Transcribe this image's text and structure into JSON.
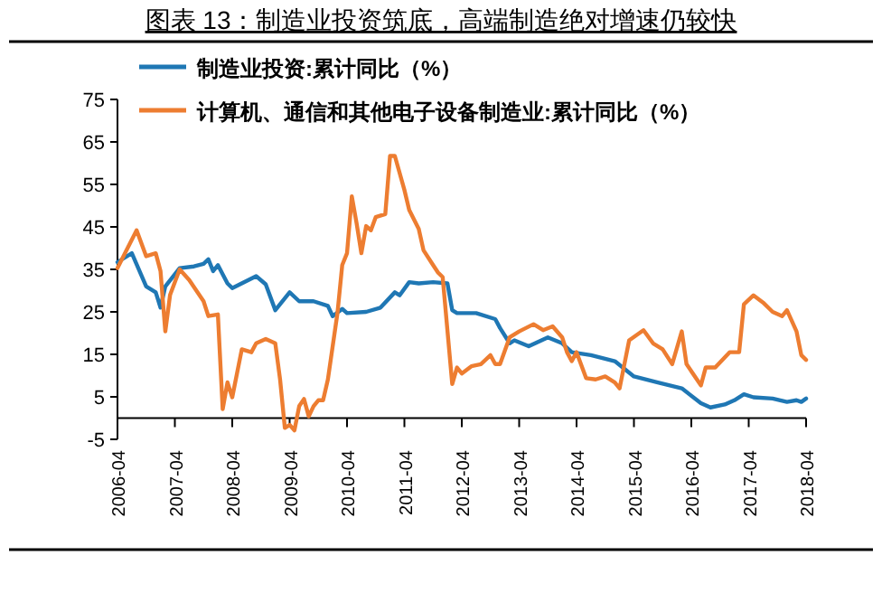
{
  "chart_data": {
    "type": "line",
    "title": "图表 13：制造业投资筑底，高端制造绝对增速仍较快",
    "legend": "top",
    "marker": "none",
    "line_style": "solid",
    "grid": false,
    "xlim": [
      "2006-04",
      "2018-04"
    ],
    "xticks": [
      "2006-04",
      "2007-04",
      "2008-04",
      "2009-04",
      "2010-04",
      "2011-04",
      "2012-04",
      "2013-04",
      "2014-04",
      "2015-04",
      "2016-04",
      "2017-04",
      "2018-04"
    ],
    "ylim": [
      -5,
      75
    ],
    "yticks": [
      -5,
      5,
      15,
      25,
      35,
      45,
      55,
      65,
      75
    ],
    "series": [
      {
        "name": "制造业投资:累计同比（%）",
        "color": "#1f77b4",
        "x": [
          "2006-04",
          "2006-07",
          "2006-10",
          "2006-12",
          "2007-01",
          "2007-02",
          "2007-05",
          "2007-08",
          "2007-10",
          "2007-11",
          "2007-12",
          "2008-01",
          "2008-03",
          "2008-04",
          "2008-09",
          "2008-11",
          "2009-01",
          "2009-04",
          "2009-06",
          "2009-09",
          "2009-12",
          "2010-01",
          "2010-03",
          "2010-04",
          "2010-08",
          "2010-11",
          "2011-02",
          "2011-03",
          "2011-05",
          "2011-07",
          "2011-10",
          "2012-01",
          "2012-02",
          "2012-03",
          "2012-07",
          "2012-11",
          "2012-12",
          "2013-02",
          "2013-03",
          "2013-06",
          "2013-10",
          "2014-01",
          "2014-03",
          "2014-07",
          "2014-12",
          "2015-04",
          "2015-09",
          "2016-02",
          "2016-06",
          "2016-08",
          "2016-11",
          "2017-01",
          "2017-03",
          "2017-05",
          "2017-09",
          "2017-12",
          "2018-02",
          "2018-03",
          "2018-04"
        ],
        "values": [
          36.7,
          38.8,
          31,
          29.6,
          26,
          31,
          35.3,
          35.7,
          36.3,
          37.4,
          34.6,
          36,
          31.7,
          30.6,
          33.4,
          31.5,
          25.4,
          29.6,
          27.5,
          27.5,
          26.4,
          24,
          25.7,
          24.7,
          25,
          26,
          29.6,
          28.9,
          32,
          31.7,
          32,
          31.7,
          25.4,
          24.7,
          24.7,
          23.3,
          21.2,
          17.6,
          18.3,
          16.9,
          19,
          17.6,
          15.5,
          14.8,
          13.4,
          9.8,
          8.4,
          7,
          3.5,
          2.5,
          3.2,
          4.2,
          5.6,
          4.9,
          4.6,
          3.8,
          4.2,
          3.8,
          4.6
        ]
      },
      {
        "name": "计算机、通信和其他电子设备制造业:累计同比（%）",
        "color": "#ed7d31",
        "x": [
          "2006-04",
          "2006-08",
          "2006-10",
          "2006-12",
          "2007-01",
          "2007-02",
          "2007-03",
          "2007-05",
          "2007-07",
          "2007-10",
          "2007-11",
          "2008-01",
          "2008-02",
          "2008-03",
          "2008-04",
          "2008-06",
          "2008-08",
          "2008-09",
          "2008-11",
          "2009-01",
          "2009-02",
          "2009-03",
          "2009-04",
          "2009-05",
          "2009-06",
          "2009-07",
          "2009-08",
          "2009-09",
          "2009-10",
          "2009-11",
          "2009-12",
          "2010-02",
          "2010-03",
          "2010-04",
          "2010-05",
          "2010-06",
          "2010-07",
          "2010-08",
          "2010-09",
          "2010-10",
          "2010-12",
          "2011-01",
          "2011-02",
          "2011-04",
          "2011-05",
          "2011-07",
          "2011-08",
          "2011-10",
          "2011-11",
          "2011-12",
          "2012-02",
          "2012-03",
          "2012-04",
          "2012-06",
          "2012-08",
          "2012-10",
          "2012-11",
          "2012-12",
          "2013-02",
          "2013-04",
          "2013-07",
          "2013-09",
          "2013-11",
          "2014-01",
          "2014-02",
          "2014-03",
          "2014-04",
          "2014-06",
          "2014-08",
          "2014-10",
          "2014-12",
          "2015-01",
          "2015-03",
          "2015-06",
          "2015-08",
          "2015-10",
          "2015-12",
          "2016-02",
          "2016-03",
          "2016-06",
          "2016-07",
          "2016-09",
          "2016-12",
          "2017-02",
          "2017-03",
          "2017-05",
          "2017-07",
          "2017-09",
          "2017-11",
          "2017-12",
          "2018-02",
          "2018-03",
          "2018-04"
        ],
        "values": [
          35.3,
          44.2,
          38.1,
          38.8,
          34.6,
          20.4,
          29,
          35,
          32.5,
          27.5,
          24,
          24.4,
          2.1,
          8.4,
          4.9,
          16.2,
          15.5,
          17.6,
          18.6,
          17.6,
          9.1,
          -2.3,
          -1.6,
          -2.9,
          2.8,
          4.5,
          0.4,
          2.8,
          4.2,
          4.2,
          9.1,
          24.7,
          36,
          38.8,
          52.2,
          45.9,
          38.8,
          45.2,
          44.2,
          47.3,
          48,
          61.7,
          61.7,
          53.7,
          49,
          44.5,
          39.5,
          36,
          34.3,
          33.2,
          8,
          11.9,
          10.5,
          12.2,
          12.7,
          14.8,
          12.7,
          12.7,
          19,
          20.4,
          22.1,
          20.7,
          21.6,
          19,
          15.5,
          13.4,
          15.5,
          9.4,
          9.1,
          9.8,
          8.4,
          7,
          18.3,
          20.7,
          17.6,
          16.2,
          12.7,
          20.4,
          12.7,
          7.7,
          11.9,
          11.9,
          15.5,
          15.5,
          26.8,
          28.9,
          27.2,
          25,
          24,
          25.4,
          20.4,
          14.8,
          13.7
        ]
      }
    ]
  }
}
